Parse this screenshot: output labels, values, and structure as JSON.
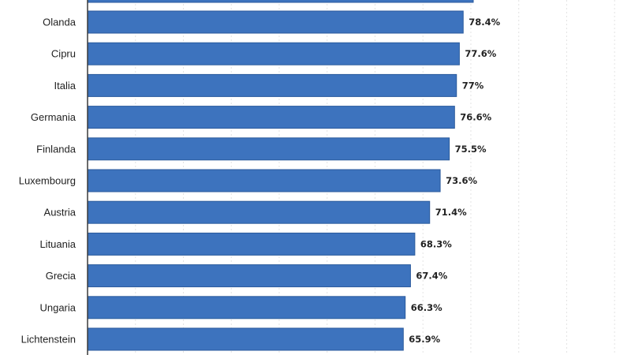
{
  "chart_data": {
    "type": "bar",
    "orientation": "horizontal",
    "categories": [
      "Olanda",
      "Cipru",
      "Italia",
      "Germania",
      "Finlanda",
      "Luxembourg",
      "Austria",
      "Lituania",
      "Grecia",
      "Ungaria",
      "Lichtenstein"
    ],
    "values": [
      78.4,
      77.6,
      77,
      76.6,
      75.5,
      73.6,
      71.4,
      68.3,
      67.4,
      66.3,
      65.9
    ],
    "value_labels": [
      "78.4%",
      "77.6%",
      "77%",
      "76.6%",
      "75.5%",
      "73.6%",
      "71.4%",
      "68.3%",
      "67.4%",
      "66.3%",
      "65.9%"
    ],
    "partial_top_bar_value": 80.5,
    "xlim": [
      0,
      110
    ],
    "grid": true,
    "bar_color": "#3d73be",
    "bar_edge_color": "#2a5a9c"
  }
}
